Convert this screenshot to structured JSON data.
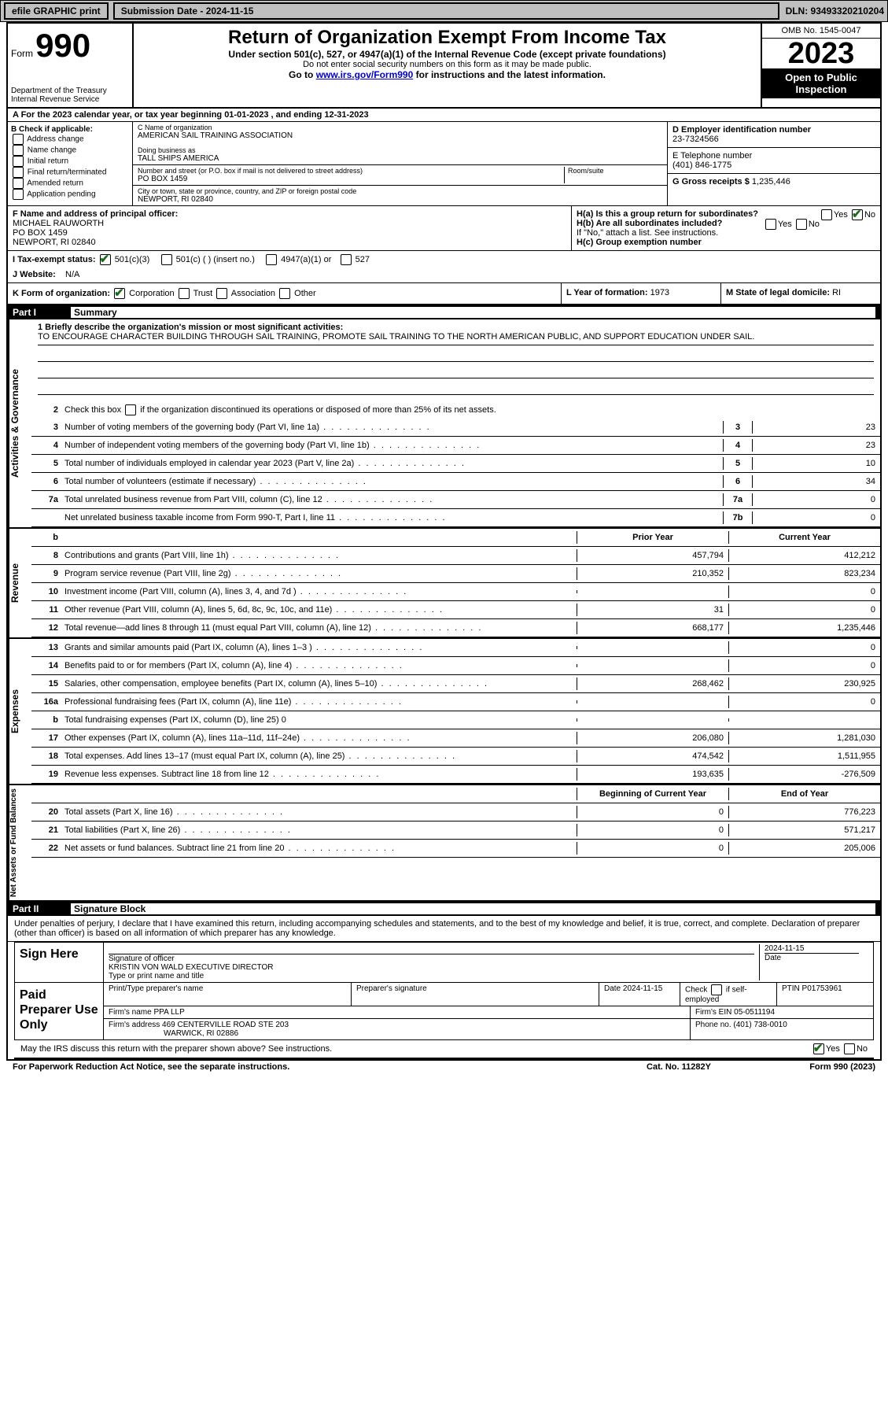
{
  "topbar": {
    "efile": "efile GRAPHIC print",
    "subdate": "Submission Date - 2024-11-15",
    "dln": "DLN: 93493320210204"
  },
  "header": {
    "form_prefix": "Form",
    "form_no": "990",
    "dept": "Department of the Treasury Internal Revenue Service",
    "title": "Return of Organization Exempt From Income Tax",
    "sub": "Under section 501(c), 527, or 4947(a)(1) of the Internal Revenue Code (except private foundations)",
    "sub2": "Do not enter social security numbers on this form as it may be made public.",
    "sub3_pre": "Go to ",
    "sub3_link": "www.irs.gov/Form990",
    "sub3_post": " for instructions and the latest information.",
    "omb": "OMB No. 1545-0047",
    "year": "2023",
    "opi": "Open to Public Inspection"
  },
  "row_a": "A For the 2023 calendar year, or tax year beginning 01-01-2023   , and ending 12-31-2023",
  "box_b": {
    "label": "B Check if applicable:",
    "opts": [
      "Address change",
      "Name change",
      "Initial return",
      "Final return/terminated",
      "Amended return",
      "Application pending"
    ]
  },
  "box_c": {
    "name_lbl": "C Name of organization",
    "name": "AMERICAN SAIL TRAINING ASSOCIATION",
    "dba_lbl": "Doing business as",
    "dba": "TALL SHIPS AMERICA",
    "street_lbl": "Number and street (or P.O. box if mail is not delivered to street address)",
    "street": "PO BOX 1459",
    "room_lbl": "Room/suite",
    "city_lbl": "City or town, state or province, country, and ZIP or foreign postal code",
    "city": "NEWPORT, RI  02840"
  },
  "box_d": {
    "lbl": "D Employer identification number",
    "val": "23-7324566"
  },
  "box_e": {
    "lbl": "E Telephone number",
    "val": "(401) 846-1775"
  },
  "box_g": {
    "lbl": "G Gross receipts $",
    "val": "1,235,446"
  },
  "box_f": {
    "lbl": "F  Name and address of principal officer:",
    "name": "MICHAEL RAUWORTH",
    "street": "PO BOX 1459",
    "city": "NEWPORT, RI  02840"
  },
  "box_h": {
    "ha": "H(a)  Is this a group return for subordinates?",
    "hb": "H(b)  Are all subordinates included?",
    "hb_note": "If \"No,\" attach a list. See instructions.",
    "hc": "H(c)  Group exemption number",
    "yes": "Yes",
    "no": "No"
  },
  "box_i": {
    "lbl": "I   Tax-exempt status:",
    "o1": "501(c)(3)",
    "o2": "501(c) (  ) (insert no.)",
    "o3": "4947(a)(1) or",
    "o4": "527"
  },
  "box_j": {
    "lbl": "J   Website:",
    "val": "N/A"
  },
  "box_k": {
    "lbl": "K Form of organization:",
    "o1": "Corporation",
    "o2": "Trust",
    "o3": "Association",
    "o4": "Other"
  },
  "box_l": {
    "lbl": "L Year of formation:",
    "val": "1973"
  },
  "box_m": {
    "lbl": "M State of legal domicile:",
    "val": "RI"
  },
  "part1": {
    "num": "Part I",
    "title": "Summary"
  },
  "mission": {
    "lbl": "1   Briefly describe the organization's mission or most significant activities:",
    "txt": "TO ENCOURAGE CHARACTER BUILDING THROUGH SAIL TRAINING, PROMOTE SAIL TRAINING TO THE NORTH AMERICAN PUBLIC, AND SUPPORT EDUCATION UNDER SAIL."
  },
  "line2": "Check this box      if the organization discontinued its operations or disposed of more than 25% of its net assets.",
  "gov_lines": [
    {
      "n": "3",
      "t": "Number of voting members of the governing body (Part VI, line 1a)",
      "box": "3",
      "v": "23"
    },
    {
      "n": "4",
      "t": "Number of independent voting members of the governing body (Part VI, line 1b)",
      "box": "4",
      "v": "23"
    },
    {
      "n": "5",
      "t": "Total number of individuals employed in calendar year 2023 (Part V, line 2a)",
      "box": "5",
      "v": "10"
    },
    {
      "n": "6",
      "t": "Total number of volunteers (estimate if necessary)",
      "box": "6",
      "v": "34"
    },
    {
      "n": "7a",
      "t": "Total unrelated business revenue from Part VIII, column (C), line 12",
      "box": "7a",
      "v": "0"
    },
    {
      "n": "",
      "t": "Net unrelated business taxable income from Form 990-T, Part I, line 11",
      "box": "7b",
      "v": "0"
    }
  ],
  "col_hdr": {
    "prior": "Prior Year",
    "current": "Current Year"
  },
  "revenue": [
    {
      "n": "8",
      "t": "Contributions and grants (Part VIII, line 1h)",
      "p": "457,794",
      "c": "412,212"
    },
    {
      "n": "9",
      "t": "Program service revenue (Part VIII, line 2g)",
      "p": "210,352",
      "c": "823,234"
    },
    {
      "n": "10",
      "t": "Investment income (Part VIII, column (A), lines 3, 4, and 7d )",
      "p": "",
      "c": "0"
    },
    {
      "n": "11",
      "t": "Other revenue (Part VIII, column (A), lines 5, 6d, 8c, 9c, 10c, and 11e)",
      "p": "31",
      "c": "0"
    },
    {
      "n": "12",
      "t": "Total revenue—add lines 8 through 11 (must equal Part VIII, column (A), line 12)",
      "p": "668,177",
      "c": "1,235,446"
    }
  ],
  "expenses": [
    {
      "n": "13",
      "t": "Grants and similar amounts paid (Part IX, column (A), lines 1–3 )",
      "p": "",
      "c": "0"
    },
    {
      "n": "14",
      "t": "Benefits paid to or for members (Part IX, column (A), line 4)",
      "p": "",
      "c": "0"
    },
    {
      "n": "15",
      "t": "Salaries, other compensation, employee benefits (Part IX, column (A), lines 5–10)",
      "p": "268,462",
      "c": "230,925"
    },
    {
      "n": "16a",
      "t": "Professional fundraising fees (Part IX, column (A), line 11e)",
      "p": "",
      "c": "0"
    },
    {
      "n": "b",
      "t": "Total fundraising expenses (Part IX, column (D), line 25) 0",
      "p": "GREY",
      "c": "GREY"
    },
    {
      "n": "17",
      "t": "Other expenses (Part IX, column (A), lines 11a–11d, 11f–24e)",
      "p": "206,080",
      "c": "1,281,030"
    },
    {
      "n": "18",
      "t": "Total expenses. Add lines 13–17 (must equal Part IX, column (A), line 25)",
      "p": "474,542",
      "c": "1,511,955"
    },
    {
      "n": "19",
      "t": "Revenue less expenses. Subtract line 18 from line 12",
      "p": "193,635",
      "c": "-276,509"
    }
  ],
  "na_hdr": {
    "beg": "Beginning of Current Year",
    "end": "End of Year"
  },
  "netassets": [
    {
      "n": "20",
      "t": "Total assets (Part X, line 16)",
      "p": "0",
      "c": "776,223"
    },
    {
      "n": "21",
      "t": "Total liabilities (Part X, line 26)",
      "p": "0",
      "c": "571,217"
    },
    {
      "n": "22",
      "t": "Net assets or fund balances. Subtract line 21 from line 20",
      "p": "0",
      "c": "205,006"
    }
  ],
  "part2": {
    "num": "Part II",
    "title": "Signature Block"
  },
  "perjury": "Under penalties of perjury, I declare that I have examined this return, including accompanying schedules and statements, and to the best of my knowledge and belief, it is true, correct, and complete. Declaration of preparer (other than officer) is based on all information of which preparer has any knowledge.",
  "sign": {
    "lbl": "Sign Here",
    "sig_lbl": "Signature of officer",
    "date_lbl": "Date",
    "date": "2024-11-15",
    "name": "KRISTIN VON WALD  EXECUTIVE DIRECTOR",
    "name_lbl": "Type or print name and title"
  },
  "paid": {
    "lbl": "Paid Preparer Use Only",
    "r1": {
      "c1": "Print/Type preparer's name",
      "c2": "Preparer's signature",
      "c3": "Date 2024-11-15",
      "c4": "Check      if self-employed",
      "c5": "PTIN P01753961"
    },
    "r2": {
      "c1": "Firm's name    PPA LLP",
      "c2": "Firm's EIN  05-0511194"
    },
    "r3": {
      "c1": "Firm's address 469 CENTERVILLE ROAD STE 203",
      "c2": "Phone no. (401) 738-0010"
    },
    "r3b": "WARWICK, RI  02886"
  },
  "lastq": "May the IRS discuss this return with the preparer shown above? See instructions.",
  "bottom": {
    "l": "For Paperwork Reduction Act Notice, see the separate instructions.",
    "m": "Cat. No. 11282Y",
    "r": "Form 990 (2023)"
  },
  "vside": {
    "gov": "Activities & Governance",
    "rev": "Revenue",
    "exp": "Expenses",
    "na": "Net Assets or Fund Balances"
  }
}
